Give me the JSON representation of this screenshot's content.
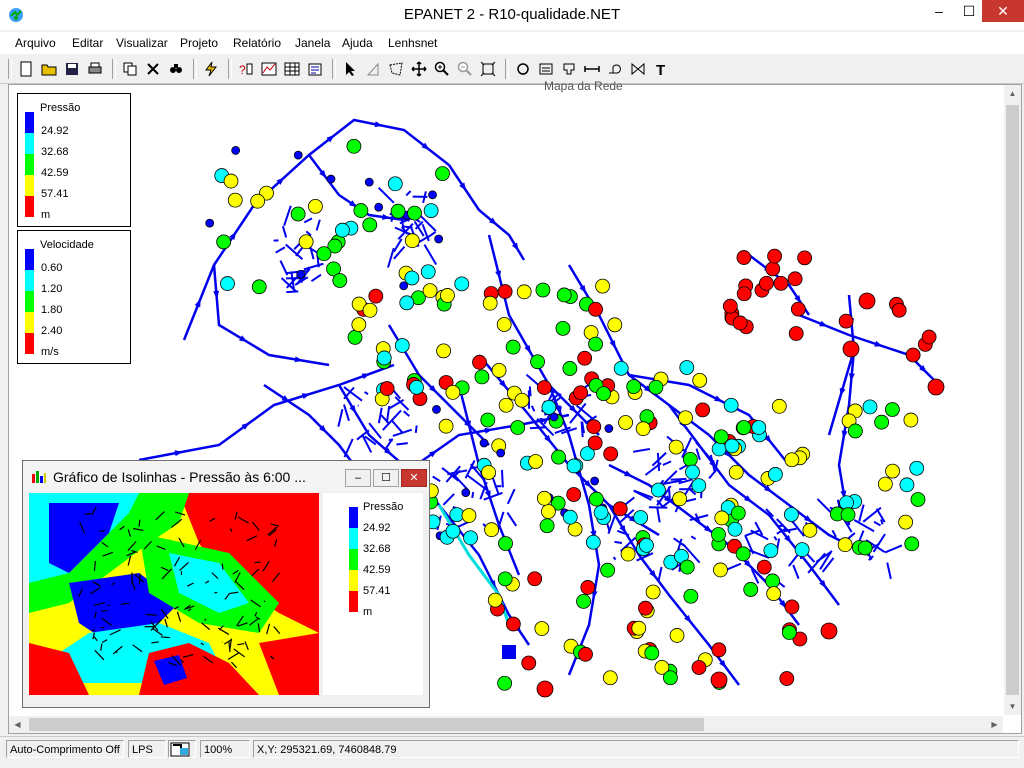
{
  "window": {
    "title": "EPANET 2 - R10-qualidade.NET"
  },
  "window_controls": {
    "minimize": "–",
    "maximize": "☐",
    "close": "✕"
  },
  "menu": {
    "items": [
      "Arquivo",
      "Editar",
      "Visualizar",
      "Projeto",
      "Relatório",
      "Janela",
      "Ajuda",
      "Lenhsnet"
    ]
  },
  "toolbar": {
    "groups": [
      [
        "new-icon",
        "open-icon",
        "save-icon",
        "print-icon"
      ],
      [
        "copy-icon",
        "delete-icon",
        "find-icon"
      ],
      [
        "run-icon"
      ],
      [
        "query-icon",
        "graph-icon",
        "table-icon",
        "options-icon"
      ],
      [
        "select-icon",
        "select-vertex-icon",
        "select-region-icon",
        "pan-icon",
        "zoom-in-icon",
        "zoom-out-icon",
        "full-extent-icon"
      ],
      [
        "junction-icon",
        "reservoir-icon",
        "tank-icon",
        "pipe-icon",
        "pump-icon",
        "valve-icon",
        "label-icon"
      ]
    ]
  },
  "map": {
    "caption": "Mapa da Rede",
    "node_legend": {
      "title": "Pressão",
      "values": [
        "24.92",
        "32.68",
        "42.59",
        "57.41"
      ],
      "unit": "m",
      "colors": [
        "#0000ff",
        "#00ffff",
        "#00ff00",
        "#ffff00",
        "#ff0000"
      ]
    },
    "link_legend": {
      "title": "Velocidade",
      "values": [
        "0.60",
        "1.20",
        "1.80",
        "2.40"
      ],
      "unit": "m/s",
      "colors": [
        "#0000ff",
        "#00ffff",
        "#00ff00",
        "#ffff00",
        "#ff0000"
      ]
    },
    "network_color": "#0000ee"
  },
  "contour_window": {
    "title": "Gráfico de Isolinhas - Pressão às 6:00 ...",
    "buttons": {
      "minimize": "–",
      "maximize": "☐",
      "close": "✕"
    },
    "legend": {
      "title": "Pressão",
      "values": [
        "24.92",
        "32.68",
        "42.59",
        "57.41"
      ],
      "unit": "m",
      "colors": [
        "#0000ff",
        "#00ffff",
        "#00ff00",
        "#ffff00",
        "#ff0000"
      ]
    }
  },
  "status": {
    "auto_length": "Auto-Comprimento Off",
    "flow_units": "LPS",
    "zoom": "100%",
    "coordinates": "X,Y: 295321.69, 7460848.79"
  }
}
